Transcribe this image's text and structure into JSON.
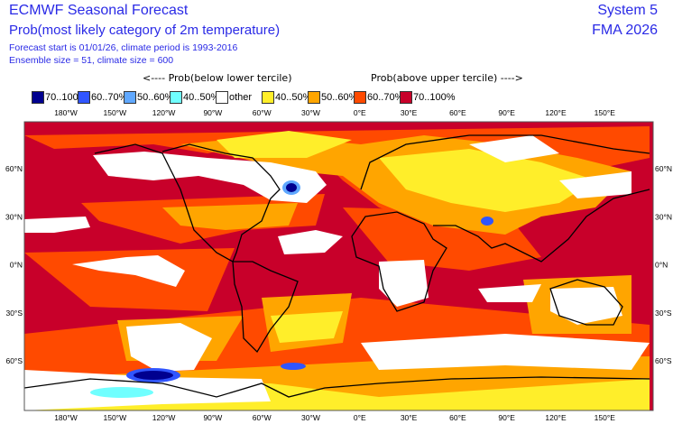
{
  "header": {
    "title": "ECMWF Seasonal Forecast",
    "subtitle": "Prob(most likely category of 2m temperature)",
    "forecast_info": "Forecast start is 01/01/26, climate period is 1993-2016",
    "ensemble_info": "Ensemble size = 51, climate size = 600",
    "system": "System 5",
    "period": "FMA 2026"
  },
  "legend": {
    "below_label": "<---- Prob(below lower tercile)",
    "above_label": "Prob(above upper tercile) ---->",
    "items": [
      {
        "label": "70..100%",
        "color": "#00008f"
      },
      {
        "label": "60..70%",
        "color": "#3055ff"
      },
      {
        "label": "50..60%",
        "color": "#60a8ff"
      },
      {
        "label": "40..50%",
        "color": "#70ffff"
      },
      {
        "label": "other",
        "color": "#ffffff"
      },
      {
        "label": "40..50%",
        "color": "#ffee2a"
      },
      {
        "label": "50..60%",
        "color": "#ffa500"
      },
      {
        "label": "60..70%",
        "color": "#ff4a00"
      },
      {
        "label": "70..100%",
        "color": "#c8002a"
      }
    ]
  },
  "axes": {
    "lon_labels": [
      "180°W",
      "150°W",
      "120°W",
      "90°W",
      "60°W",
      "30°W",
      "0°E",
      "30°E",
      "60°E",
      "90°E",
      "120°E",
      "150°E"
    ],
    "lat_labels": [
      "60°N",
      "30°N",
      "0°N",
      "30°S",
      "60°S"
    ]
  }
}
